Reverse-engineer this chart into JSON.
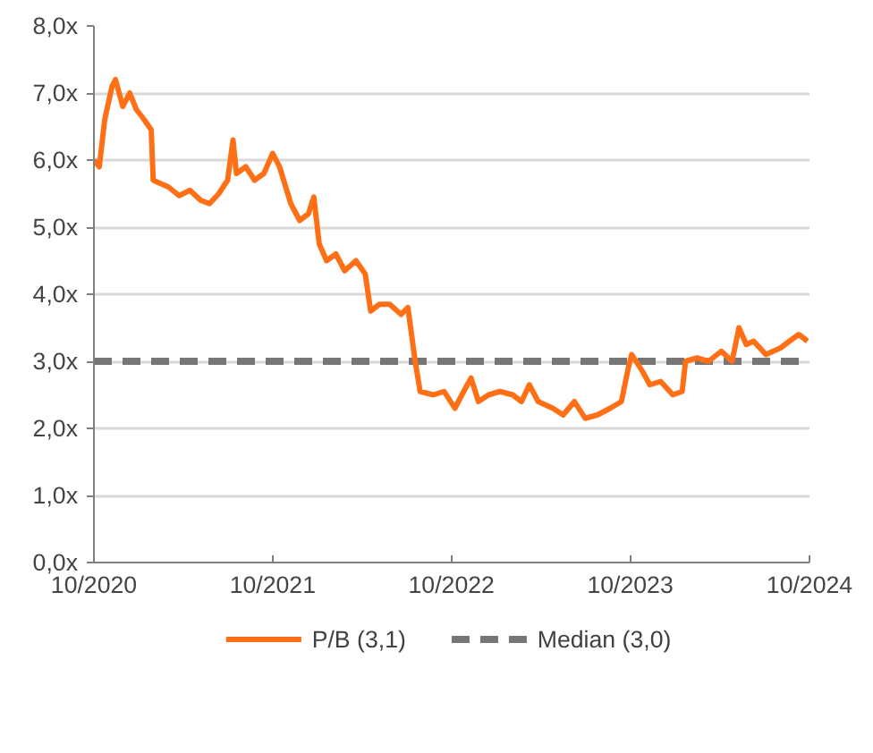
{
  "chart_data": {
    "type": "line",
    "x": [
      "2020-10-01",
      "2020-10-12",
      "2020-10-23",
      "2020-11-07",
      "2020-11-14",
      "2020-11-29",
      "2020-12-13",
      "2020-12-27",
      "2021-01-12",
      "2021-01-26",
      "2021-01-30",
      "2021-02-14",
      "2021-03-02",
      "2021-03-24",
      "2021-04-15",
      "2021-05-07",
      "2021-05-25",
      "2021-06-13",
      "2021-07-01",
      "2021-07-12",
      "2021-07-19",
      "2021-08-07",
      "2021-08-25",
      "2021-09-13",
      "2021-10-01",
      "2021-10-15",
      "2021-11-07",
      "2021-11-25",
      "2021-12-13",
      "2021-12-24",
      "2022-01-04",
      "2022-01-19",
      "2022-02-07",
      "2022-02-25",
      "2022-03-20",
      "2022-04-08",
      "2022-04-19",
      "2022-05-07",
      "2022-05-28",
      "2022-06-20",
      "2022-07-04",
      "2022-07-19",
      "2022-07-29",
      "2022-08-25",
      "2022-09-16",
      "2022-10-08",
      "2022-10-26",
      "2022-11-10",
      "2022-11-25",
      "2022-12-16",
      "2023-01-08",
      "2023-02-03",
      "2023-02-21",
      "2023-03-09",
      "2023-03-27",
      "2023-04-26",
      "2023-05-17",
      "2023-06-09",
      "2023-07-01",
      "2023-07-26",
      "2023-08-21",
      "2023-09-13",
      "2023-09-27",
      "2023-10-04",
      "2023-10-26",
      "2023-11-10",
      "2023-12-02",
      "2023-12-27",
      "2024-01-15",
      "2024-01-22",
      "2024-02-14",
      "2024-03-09",
      "2024-04-04",
      "2024-04-26",
      "2024-05-10",
      "2024-05-25",
      "2024-06-09",
      "2024-07-04",
      "2024-08-03",
      "2024-08-21",
      "2024-09-09",
      "2024-09-27"
    ],
    "series": [
      {
        "name": "P/B (3,1)",
        "color": "#ff6f15",
        "values": [
          6.0,
          5.9,
          6.6,
          7.1,
          7.2,
          6.8,
          7.0,
          6.75,
          6.6,
          6.45,
          5.7,
          5.65,
          5.6,
          5.47,
          5.55,
          5.4,
          5.35,
          5.5,
          5.7,
          6.3,
          5.8,
          5.9,
          5.7,
          5.8,
          6.1,
          5.9,
          5.35,
          5.1,
          5.2,
          5.45,
          4.75,
          4.5,
          4.6,
          4.35,
          4.5,
          4.3,
          3.75,
          3.85,
          3.85,
          3.7,
          3.8,
          3.0,
          2.55,
          2.5,
          2.55,
          2.3,
          2.55,
          2.75,
          2.4,
          2.5,
          2.55,
          2.5,
          2.4,
          2.65,
          2.4,
          2.3,
          2.2,
          2.4,
          2.15,
          2.2,
          2.3,
          2.4,
          2.9,
          3.1,
          2.85,
          2.65,
          2.7,
          2.5,
          2.55,
          3.0,
          3.05,
          3.0,
          3.15,
          3.0,
          3.5,
          3.25,
          3.3,
          3.1,
          3.2,
          3.3,
          3.4,
          3.3
        ]
      }
    ],
    "ref_lines": [
      {
        "axis": "y",
        "value": 3.0,
        "label": "Median (3,0)",
        "color": "#767676",
        "line_style": "dashed"
      }
    ],
    "xlim": [
      "2020-10-01",
      "2024-10-01"
    ],
    "xticks": [
      {
        "value": "2020-10",
        "label": "10/2020"
      },
      {
        "value": "2021-10",
        "label": "10/2021"
      },
      {
        "value": "2022-10",
        "label": "10/2022"
      },
      {
        "value": "2023-10",
        "label": "10/2023"
      },
      {
        "value": "2024-10",
        "label": "10/2024"
      }
    ],
    "ylim": [
      0,
      8
    ],
    "yticks": [
      {
        "value": 0,
        "label": "0,0x"
      },
      {
        "value": 1,
        "label": "1,0x"
      },
      {
        "value": 2,
        "label": "2,0x"
      },
      {
        "value": 3,
        "label": "3,0x"
      },
      {
        "value": 4,
        "label": "4,0x"
      },
      {
        "value": 5,
        "label": "5,0x"
      },
      {
        "value": 6,
        "label": "6,0x"
      },
      {
        "value": 7,
        "label": "7,0x"
      },
      {
        "value": 8,
        "label": "8,0x"
      }
    ],
    "grid": "y",
    "legend": "bottom",
    "line_style": "solid"
  }
}
